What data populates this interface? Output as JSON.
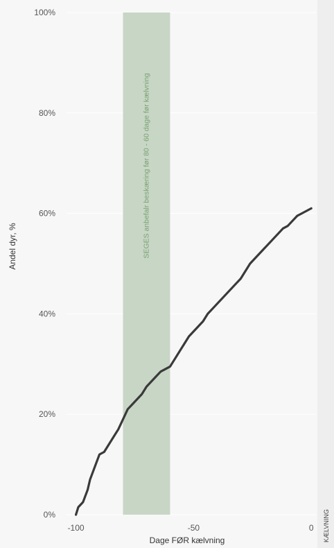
{
  "chart_data": {
    "type": "line",
    "xlabel": "Dage FØR kælvning",
    "ylabel": "Andel dyr, %",
    "xlim": [
      -104,
      2
    ],
    "ylim": [
      0,
      100
    ],
    "x_ticks": [
      -100,
      -50,
      0
    ],
    "x_tick_labels": [
      "-100",
      "-50",
      "0"
    ],
    "y_ticks": [
      0,
      20,
      40,
      60,
      80,
      100
    ],
    "y_tick_labels": [
      "0%",
      "20%",
      "40%",
      "60%",
      "80%",
      "100%"
    ],
    "grid": "horizontal",
    "band": {
      "x_start": -80,
      "x_end": -60,
      "label": "SEGES anbefalr beskæring før 80 - 60 dage før kælvning"
    },
    "series": [
      {
        "values_x": [
          -100,
          -99,
          -97,
          -95,
          -94,
          -92,
          -90,
          -88,
          -86,
          -84,
          -82,
          -80,
          -78,
          -76,
          -74,
          -72,
          -70,
          -68,
          -66,
          -64,
          -62,
          -60,
          -58,
          -56,
          -54,
          -52,
          -50,
          -48,
          -46,
          -44,
          -42,
          -40,
          -38,
          -36,
          -34,
          -32,
          -30,
          -28,
          -26,
          -24,
          -22,
          -20,
          -18,
          -16,
          -14,
          -12,
          -10,
          -8,
          -6,
          -4,
          -2,
          0
        ],
        "values_y": [
          0,
          1.5,
          2.5,
          5,
          7,
          9.5,
          12,
          12.5,
          14,
          15.5,
          17,
          19,
          21,
          22,
          23,
          24,
          25.5,
          26.5,
          27.5,
          28.5,
          29,
          29.5,
          31,
          32.5,
          34,
          35.5,
          36.5,
          37.5,
          38.5,
          40,
          41,
          42,
          43,
          44,
          45,
          46,
          47,
          48.5,
          50,
          51,
          52,
          53,
          54,
          55,
          56,
          57,
          57.5,
          58.5,
          59.5,
          60,
          60.5,
          61
        ]
      }
    ]
  },
  "colors": {
    "band": "#c8d6c6",
    "band_text": "#7aa271",
    "line": "#3a3a3a",
    "grid": "#ffffff"
  },
  "side_label": "KÆLVNING"
}
